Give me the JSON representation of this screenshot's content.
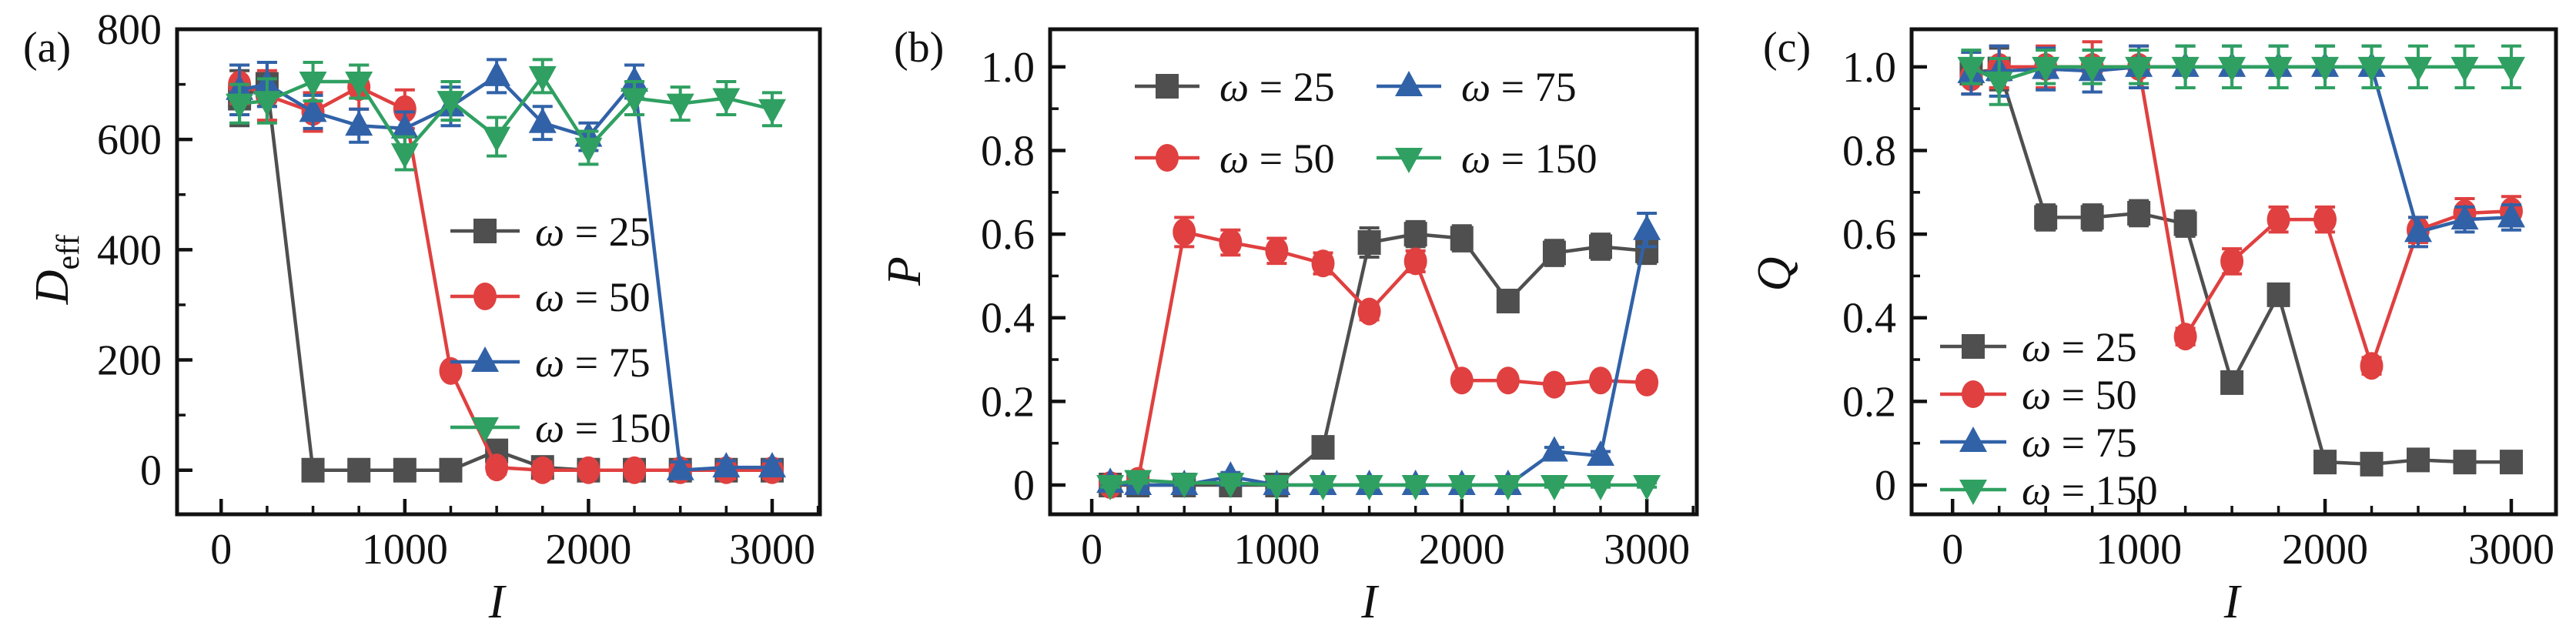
{
  "figure": {
    "background": "#ffffff",
    "axis_color": "#111111",
    "series_colors": {
      "omega25": "#4f4f4f",
      "omega50": "#e04040",
      "omega75": "#3162a8",
      "omega150": "#2fa061"
    }
  },
  "chart_data": [
    {
      "type": "line",
      "panel_label": "(a)",
      "xlabel": "I",
      "ylabel": "D",
      "ylabel_sub": "eff",
      "xlim": [
        -240,
        3260
      ],
      "ylim": [
        -80,
        800
      ],
      "xticks": [
        0,
        1000,
        2000,
        3000
      ],
      "xtick_labels": [
        "0",
        "1000",
        "2000",
        "3000"
      ],
      "xminor": 250,
      "yticks": [
        0,
        200,
        400,
        600,
        800
      ],
      "ytick_labels": [
        "0",
        "200",
        "400",
        "600",
        "800"
      ],
      "yminor": 100,
      "grid": false,
      "legend_position": "center-right",
      "x": [
        100,
        250,
        500,
        750,
        1000,
        1250,
        1500,
        1750,
        2000,
        2250,
        2500,
        2750,
        3000
      ],
      "series": [
        {
          "name": "ω = 25",
          "color": "#4f4f4f",
          "marker": "square",
          "values": [
            675,
            700,
            0,
            0,
            0,
            0,
            35,
            5,
            0,
            0,
            0,
            0,
            0
          ],
          "errors": [
            50,
            40,
            0,
            0,
            0,
            0,
            8,
            12,
            0,
            0,
            0,
            0,
            0
          ]
        },
        {
          "name": "ω = 50",
          "color": "#e04040",
          "marker": "circle",
          "values": [
            700,
            680,
            650,
            695,
            655,
            180,
            5,
            0,
            0,
            0,
            0,
            0,
            0
          ],
          "errors": [
            35,
            45,
            35,
            40,
            35,
            0,
            12,
            15,
            12,
            12,
            15,
            15,
            15
          ]
        },
        {
          "name": "ω = 75",
          "color": "#3162a8",
          "marker": "triangle-up",
          "values": [
            690,
            700,
            650,
            625,
            620,
            660,
            715,
            630,
            605,
            705,
            0,
            5,
            5
          ],
          "errors": [
            45,
            40,
            30,
            30,
            30,
            35,
            30,
            30,
            25,
            30,
            15,
            12,
            12
          ]
        },
        {
          "name": "ω = 150",
          "color": "#2fa061",
          "marker": "triangle-down",
          "values": [
            665,
            670,
            705,
            705,
            575,
            670,
            605,
            715,
            585,
            675,
            665,
            675,
            655
          ],
          "errors": [
            35,
            40,
            35,
            30,
            30,
            35,
            35,
            30,
            30,
            30,
            30,
            30,
            30
          ]
        }
      ]
    },
    {
      "type": "line",
      "panel_label": "(b)",
      "xlabel": "I",
      "ylabel": "P",
      "ylabel_sub": "",
      "xlim": [
        -225,
        3270
      ],
      "ylim": [
        -0.07,
        1.09
      ],
      "xticks": [
        0,
        1000,
        2000,
        3000
      ],
      "xtick_labels": [
        "0",
        "1000",
        "2000",
        "3000"
      ],
      "xminor": 250,
      "yticks": [
        0,
        0.2,
        0.4,
        0.6,
        0.8,
        1.0
      ],
      "ytick_labels": [
        "0",
        "0.2",
        "0.4",
        "0.6",
        "0.8",
        "1.0"
      ],
      "yminor": 0.1,
      "grid": false,
      "legend_position": "top",
      "x": [
        100,
        250,
        500,
        750,
        1000,
        1250,
        1500,
        1750,
        2000,
        2250,
        2500,
        2750,
        3000
      ],
      "series": [
        {
          "name": "ω = 25",
          "color": "#4f4f4f",
          "marker": "square",
          "values": [
            0,
            0,
            0,
            0,
            0,
            0.09,
            0.58,
            0.6,
            0.59,
            0.44,
            0.555,
            0.57,
            0.56
          ],
          "errors": [
            0.005,
            0.005,
            0.005,
            0.005,
            0.005,
            0.01,
            0.035,
            0.03,
            0.03,
            0.025,
            0.03,
            0.03,
            0.03
          ]
        },
        {
          "name": "ω = 50",
          "color": "#e04040",
          "marker": "circle",
          "values": [
            0,
            0.01,
            0.605,
            0.58,
            0.56,
            0.53,
            0.415,
            0.535,
            0.25,
            0.25,
            0.24,
            0.25,
            0.245
          ],
          "errors": [
            0.005,
            0.005,
            0.035,
            0.03,
            0.03,
            0.025,
            0.02,
            0.025,
            0.012,
            0.012,
            0.015,
            0.012,
            0.015
          ]
        },
        {
          "name": "ω = 75",
          "color": "#3162a8",
          "marker": "triangle-up",
          "values": [
            0.005,
            0,
            0,
            0.02,
            0,
            0,
            0,
            0,
            0,
            0,
            0.08,
            0.07,
            0.61
          ],
          "errors": [
            0.005,
            0.005,
            0.005,
            0.01,
            0.005,
            0.005,
            0.005,
            0.005,
            0.005,
            0.005,
            0.01,
            0.01,
            0.04
          ]
        },
        {
          "name": "ω = 150",
          "color": "#2fa061",
          "marker": "triangle-down",
          "values": [
            0,
            0.012,
            0.005,
            0.005,
            0,
            0,
            0,
            0,
            0,
            0,
            0,
            0,
            0
          ],
          "errors": [
            0.005,
            0.008,
            0.005,
            0.005,
            0.005,
            0.005,
            0.005,
            0.005,
            0.005,
            0.005,
            0.005,
            0.005,
            0.005
          ]
        }
      ]
    },
    {
      "type": "line",
      "panel_label": "(c)",
      "xlabel": "I",
      "ylabel": "Q",
      "ylabel_sub": "",
      "xlim": [
        -220,
        3240
      ],
      "ylim": [
        -0.07,
        1.09
      ],
      "xticks": [
        0,
        1000,
        2000,
        3000
      ],
      "xtick_labels": [
        "0",
        "1000",
        "2000",
        "3000"
      ],
      "xminor": 250,
      "yticks": [
        0,
        0.2,
        0.4,
        0.6,
        0.8,
        1.0
      ],
      "ytick_labels": [
        "0",
        "0.2",
        "0.4",
        "0.6",
        "0.8",
        "1.0"
      ],
      "yminor": 0.1,
      "grid": false,
      "legend_position": "bottom-left",
      "x": [
        100,
        250,
        500,
        750,
        1000,
        1250,
        1500,
        1750,
        2000,
        2250,
        2500,
        2750,
        3000
      ],
      "series": [
        {
          "name": "ω = 25",
          "color": "#4f4f4f",
          "marker": "square",
          "values": [
            0.985,
            0.995,
            0.64,
            0.64,
            0.65,
            0.625,
            0.245,
            0.455,
            0.055,
            0.05,
            0.06,
            0.055,
            0.055
          ],
          "errors": [
            0.05,
            0.05,
            0.03,
            0.03,
            0.03,
            0.03,
            0.02,
            0.02,
            0.01,
            0.01,
            0.01,
            0.01,
            0.01
          ]
        },
        {
          "name": "ω = 50",
          "color": "#e04040",
          "marker": "circle",
          "values": [
            0.975,
            1.0,
            1.0,
            1.0,
            1.0,
            0.355,
            0.535,
            0.635,
            0.635,
            0.285,
            0.61,
            0.65,
            0.655
          ],
          "errors": [
            0.04,
            0.05,
            0.05,
            0.06,
            0.05,
            0.02,
            0.03,
            0.03,
            0.03,
            0.02,
            0.03,
            0.035,
            0.035
          ]
        },
        {
          "name": "ω = 75",
          "color": "#3162a8",
          "marker": "triangle-up",
          "values": [
            0.985,
            0.99,
            0.995,
            0.99,
            1.0,
            1.0,
            1.0,
            1.0,
            1.0,
            1.0,
            0.605,
            0.635,
            0.64
          ],
          "errors": [
            0.05,
            0.06,
            0.05,
            0.05,
            0.05,
            0.05,
            0.05,
            0.05,
            0.05,
            0.05,
            0.035,
            0.03,
            0.03
          ]
        },
        {
          "name": "ω = 150",
          "color": "#2fa061",
          "marker": "triangle-down",
          "values": [
            1.0,
            0.965,
            1.0,
            1.0,
            1.0,
            1.0,
            1.0,
            1.0,
            1.0,
            1.0,
            1.0,
            1.0,
            1.0
          ],
          "errors": [
            0.04,
            0.055,
            0.04,
            0.04,
            0.04,
            0.05,
            0.05,
            0.05,
            0.05,
            0.05,
            0.05,
            0.05,
            0.05
          ]
        }
      ]
    }
  ]
}
